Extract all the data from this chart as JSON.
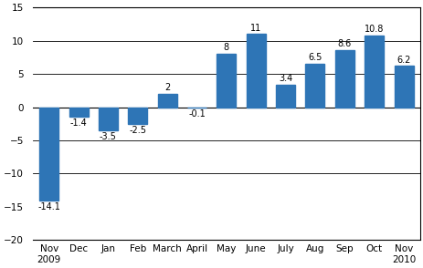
{
  "categories": [
    "Nov\n2009",
    "Dec",
    "Jan",
    "Feb",
    "March",
    "April",
    "May",
    "June",
    "July",
    "Aug",
    "Sep",
    "Oct",
    "Nov\n2010"
  ],
  "values": [
    -14.1,
    -1.4,
    -3.5,
    -2.5,
    2.0,
    -0.1,
    8.0,
    11.0,
    3.4,
    6.5,
    8.6,
    10.8,
    6.2
  ],
  "labels": [
    "-14.1",
    "-1.4",
    "-3.5",
    "-2.5",
    "2",
    "-0.1",
    "8",
    "11",
    "3.4",
    "6.5",
    "8.6",
    "10.8",
    "6.2"
  ],
  "bar_color": "#2E75B6",
  "ylim": [
    -20,
    15
  ],
  "yticks": [
    -20,
    -15,
    -10,
    -5,
    0,
    5,
    10,
    15
  ],
  "grid_yticks": [
    -10,
    -5,
    0,
    5,
    10
  ],
  "background_color": "#ffffff",
  "grid_color": "#000000",
  "label_fontsize": 7,
  "tick_fontsize": 7.5
}
